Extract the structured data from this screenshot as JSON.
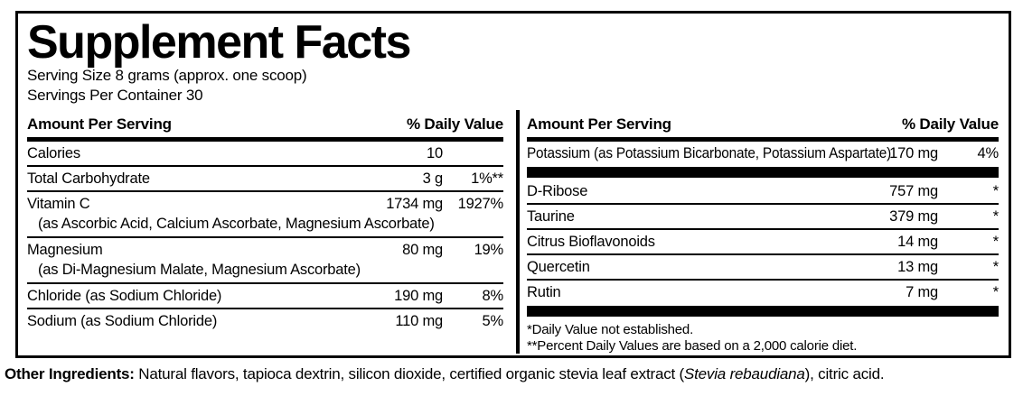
{
  "title": "Supplement Facts",
  "serving": {
    "size": "Serving Size 8 grams (approx. one scoop)",
    "per_container": "Servings Per Container 30"
  },
  "columns": {
    "left": {
      "header": {
        "amount": "Amount Per Serving",
        "dv": "% Daily Value"
      },
      "rows": [
        {
          "name": "Calories",
          "amount": "10",
          "dv": ""
        },
        {
          "name": "Total Carbohydrate",
          "amount": "3 g",
          "dv": "1%**"
        },
        {
          "name": "Vitamin C",
          "amount": "1734 mg",
          "dv": "1927%",
          "sub": "(as Ascorbic Acid, Calcium Ascorbate, Magnesium Ascorbate)"
        },
        {
          "name": "Magnesium",
          "amount": "80 mg",
          "dv": "19%",
          "sub": "(as Di-Magnesium Malate, Magnesium Ascorbate)"
        },
        {
          "name": "Chloride (as Sodium Chloride)",
          "amount": "190 mg",
          "dv": "8%"
        },
        {
          "name": "Sodium (as Sodium Chloride)",
          "amount": "110 mg",
          "dv": "5%"
        }
      ]
    },
    "right": {
      "header": {
        "amount": "Amount Per Serving",
        "dv": "% Daily Value"
      },
      "rows": [
        {
          "name": "Potassium (as Potassium Bicarbonate, Potassium Aspartate)",
          "amount": "170 mg",
          "dv": "4%"
        },
        {
          "name": "D-Ribose",
          "amount": "757 mg",
          "dv": "*"
        },
        {
          "name": "Taurine",
          "amount": "379 mg",
          "dv": "*"
        },
        {
          "name": "Citrus Bioflavonoids",
          "amount": "14 mg",
          "dv": "*"
        },
        {
          "name": "Quercetin",
          "amount": "13 mg",
          "dv": "*"
        },
        {
          "name": "Rutin",
          "amount": "7 mg",
          "dv": "*"
        }
      ],
      "footnotes": [
        "*Daily Value not established.",
        "**Percent Daily Values are based on a 2,000 calorie diet."
      ]
    }
  },
  "other_ingredients": {
    "label": "Other Ingredients:",
    "before_italic": " Natural flavors, tapioca dextrin, silicon dioxide, certified organic stevia leaf extract (",
    "italic": "Stevia rebaudiana",
    "after_italic": "), citric acid."
  },
  "colors": {
    "ink": "#000000",
    "background": "#ffffff"
  }
}
